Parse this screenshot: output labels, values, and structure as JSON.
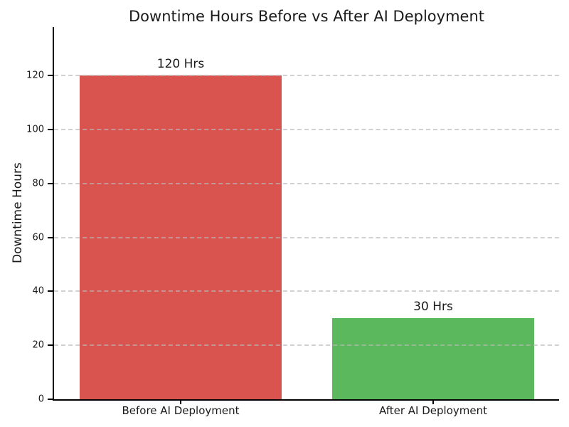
{
  "chart_data": {
    "type": "bar",
    "title": "Downtime Hours Before vs After AI Deployment",
    "categories": [
      "Before AI Deployment",
      "After AI Deployment"
    ],
    "values": [
      120,
      30
    ],
    "bar_labels": [
      "120 Hrs",
      "30 Hrs"
    ],
    "bar_colors": [
      "#d9534f",
      "#5cb85c"
    ],
    "xlabel": "",
    "ylabel": "Downtime Hours",
    "ylim": [
      0,
      138
    ],
    "yticks": [
      0,
      20,
      40,
      60,
      80,
      100,
      120
    ],
    "grid": "horizontal-dashed-over-bars",
    "legend": "none"
  }
}
